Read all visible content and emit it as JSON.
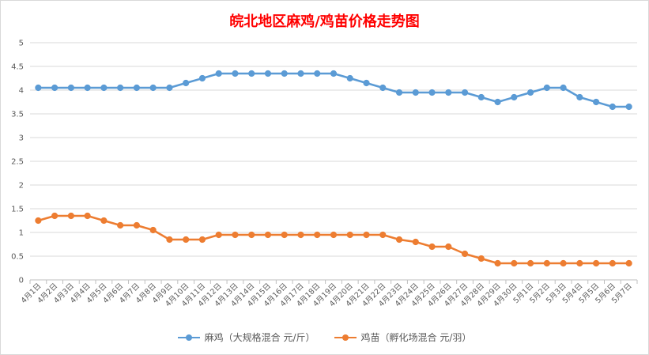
{
  "chart_data": {
    "type": "line",
    "title": "皖北地区麻鸡/鸡苗价格走势图",
    "categories": [
      "4月1日",
      "4月2日",
      "4月3日",
      "4月4日",
      "4月5日",
      "4月6日",
      "4月7日",
      "4月8日",
      "4月9日",
      "4月10日",
      "4月11日",
      "4月12日",
      "4月13日",
      "4月14日",
      "4月15日",
      "4月16日",
      "4月17日",
      "4月18日",
      "4月19日",
      "4月20日",
      "4月21日",
      "4月22日",
      "4月23日",
      "4月24日",
      "4月25日",
      "4月26日",
      "4月27日",
      "4月28日",
      "4月29日",
      "4月30日",
      "5月1日",
      "5月2日",
      "5月3日",
      "5月4日",
      "5月5日",
      "5月6日",
      "5月7日"
    ],
    "ylim": [
      0,
      5
    ],
    "yticks": [
      "0",
      "0.5",
      "1",
      "1.5",
      "2",
      "2.5",
      "3",
      "3.5",
      "4",
      "4.5",
      "5"
    ],
    "grid": true,
    "legend_position": "bottom",
    "series": [
      {
        "name": "麻鸡（大规格混合 元/斤）",
        "color": "#5b9bd5",
        "values": [
          4.05,
          4.05,
          4.05,
          4.05,
          4.05,
          4.05,
          4.05,
          4.05,
          4.05,
          4.15,
          4.25,
          4.35,
          4.35,
          4.35,
          4.35,
          4.35,
          4.35,
          4.35,
          4.35,
          4.25,
          4.15,
          4.05,
          3.95,
          3.95,
          3.95,
          3.95,
          3.95,
          3.85,
          3.75,
          3.85,
          3.95,
          4.05,
          4.05,
          3.85,
          3.75,
          3.65,
          3.65
        ]
      },
      {
        "name": "鸡苗（孵化场混合 元/羽）",
        "color": "#ed7d31",
        "values": [
          1.25,
          1.35,
          1.35,
          1.35,
          1.25,
          1.15,
          1.15,
          1.05,
          0.85,
          0.85,
          0.85,
          0.95,
          0.95,
          0.95,
          0.95,
          0.95,
          0.95,
          0.95,
          0.95,
          0.95,
          0.95,
          0.95,
          0.85,
          0.8,
          0.7,
          0.7,
          0.55,
          0.45,
          0.35,
          0.35,
          0.35,
          0.35,
          0.35,
          0.35,
          0.35,
          0.35,
          0.35
        ]
      }
    ]
  }
}
